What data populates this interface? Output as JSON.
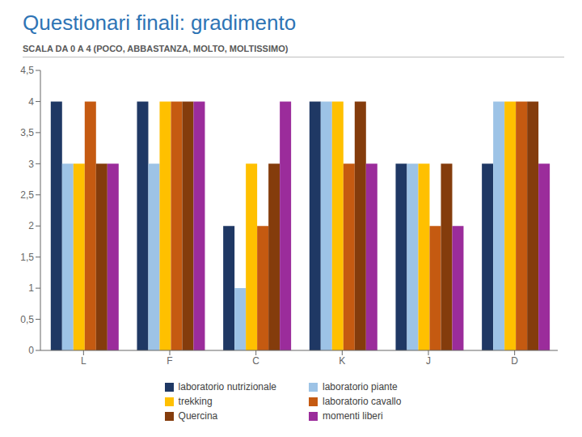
{
  "chart_data": {
    "type": "bar",
    "title": "Questionari finali: gradimento",
    "subtitle": "SCALA DA 0 A 4 (POCO, ABBASTANZA, MOLTO, MOLTISSIMO)",
    "categories": [
      "L",
      "F",
      "C",
      "K",
      "J",
      "D"
    ],
    "series": [
      {
        "name": "laboratorio nutrizionale",
        "color": "#1F3864",
        "values": [
          4,
          4,
          2,
          4,
          3,
          3
        ]
      },
      {
        "name": "laboratorio piante",
        "color": "#9DC3E6",
        "values": [
          3,
          3,
          1,
          4,
          3,
          4
        ]
      },
      {
        "name": "trekking",
        "color": "#FFC000",
        "values": [
          3,
          4,
          3,
          4,
          3,
          4
        ]
      },
      {
        "name": "laboratorio cavallo",
        "color": "#C55A11",
        "values": [
          4,
          4,
          2,
          3,
          2,
          4
        ]
      },
      {
        "name": "Quercina",
        "color": "#843C0C",
        "values": [
          3,
          4,
          3,
          4,
          3,
          4
        ]
      },
      {
        "name": "momenti liberi",
        "color": "#9B2C9B",
        "values": [
          3,
          4,
          4,
          3,
          2,
          3
        ]
      }
    ],
    "ylim": [
      0,
      4.5
    ],
    "yticks": [
      0,
      {
        "value": 0.5,
        "label": "0,5"
      },
      1,
      {
        "value": 1.5,
        "label": "1,5"
      },
      2,
      {
        "value": 2.5,
        "label": "2,5"
      },
      3,
      {
        "value": 3.5,
        "label": "3,5"
      },
      4,
      {
        "value": 4.5,
        "label": "4,5"
      }
    ],
    "grid": false,
    "legend": "bottom"
  }
}
